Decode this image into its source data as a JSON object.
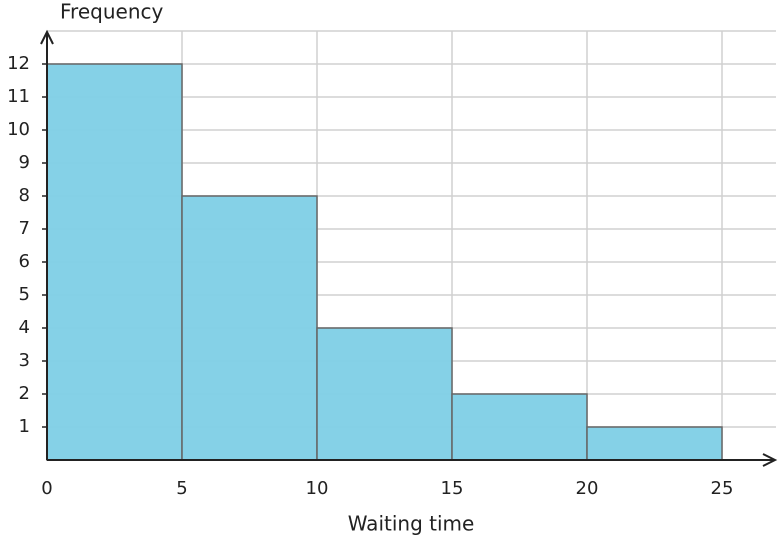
{
  "chart_data": {
    "type": "histogram",
    "y_label": "Frequency",
    "x_label": "Waiting time",
    "bins": [
      0,
      5,
      10,
      15,
      20,
      25
    ],
    "values": [
      12,
      8,
      4,
      2,
      1
    ],
    "color": "#7ecfe6",
    "xlim": [
      0,
      27
    ],
    "ylim": [
      0,
      13
    ],
    "xticks": [
      0,
      5,
      10,
      15,
      20,
      25
    ],
    "yticks": [
      1,
      2,
      3,
      4,
      5,
      6,
      7,
      8,
      9,
      10,
      11,
      12
    ],
    "grid": true
  }
}
